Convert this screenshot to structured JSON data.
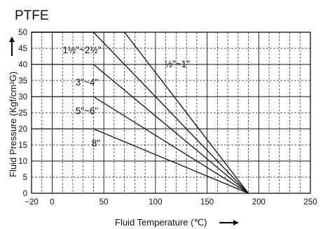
{
  "chart_data": {
    "type": "line",
    "title": "PTFE",
    "xlabel": "Fluid Temperature (℃)",
    "ylabel": "Fluid Pressure (Kgf/cm²G)",
    "xlim": [
      -20,
      250
    ],
    "ylim": [
      0,
      50
    ],
    "x_ticks": [
      -20,
      0,
      50,
      100,
      150,
      200,
      250
    ],
    "x_tick_labels": [
      "−20",
      "0",
      "50",
      "100",
      "150",
      "200",
      "250"
    ],
    "y_ticks": [
      0,
      5,
      10,
      15,
      20,
      25,
      30,
      35,
      40,
      45,
      50
    ],
    "y_tick_labels": [
      "0",
      "5",
      "10",
      "15",
      "20",
      "25",
      "30",
      "35",
      "40",
      "45",
      "50"
    ],
    "grid": true,
    "series": [
      {
        "name": "½\"~1\"",
        "x": [
          -20,
          70,
          190
        ],
        "y": [
          50,
          50,
          0
        ]
      },
      {
        "name": "1½\"~2½\"",
        "x": [
          -20,
          40,
          190
        ],
        "y": [
          50,
          50,
          0
        ]
      },
      {
        "name": "3\"~4\"",
        "x": [
          -20,
          40,
          190
        ],
        "y": [
          40,
          40,
          0
        ]
      },
      {
        "name": "5\"~6\"",
        "x": [
          -20,
          40,
          190
        ],
        "y": [
          30,
          30,
          0
        ]
      },
      {
        "name": "8\"",
        "x": [
          -20,
          40,
          190
        ],
        "y": [
          20,
          20,
          0
        ]
      }
    ]
  }
}
